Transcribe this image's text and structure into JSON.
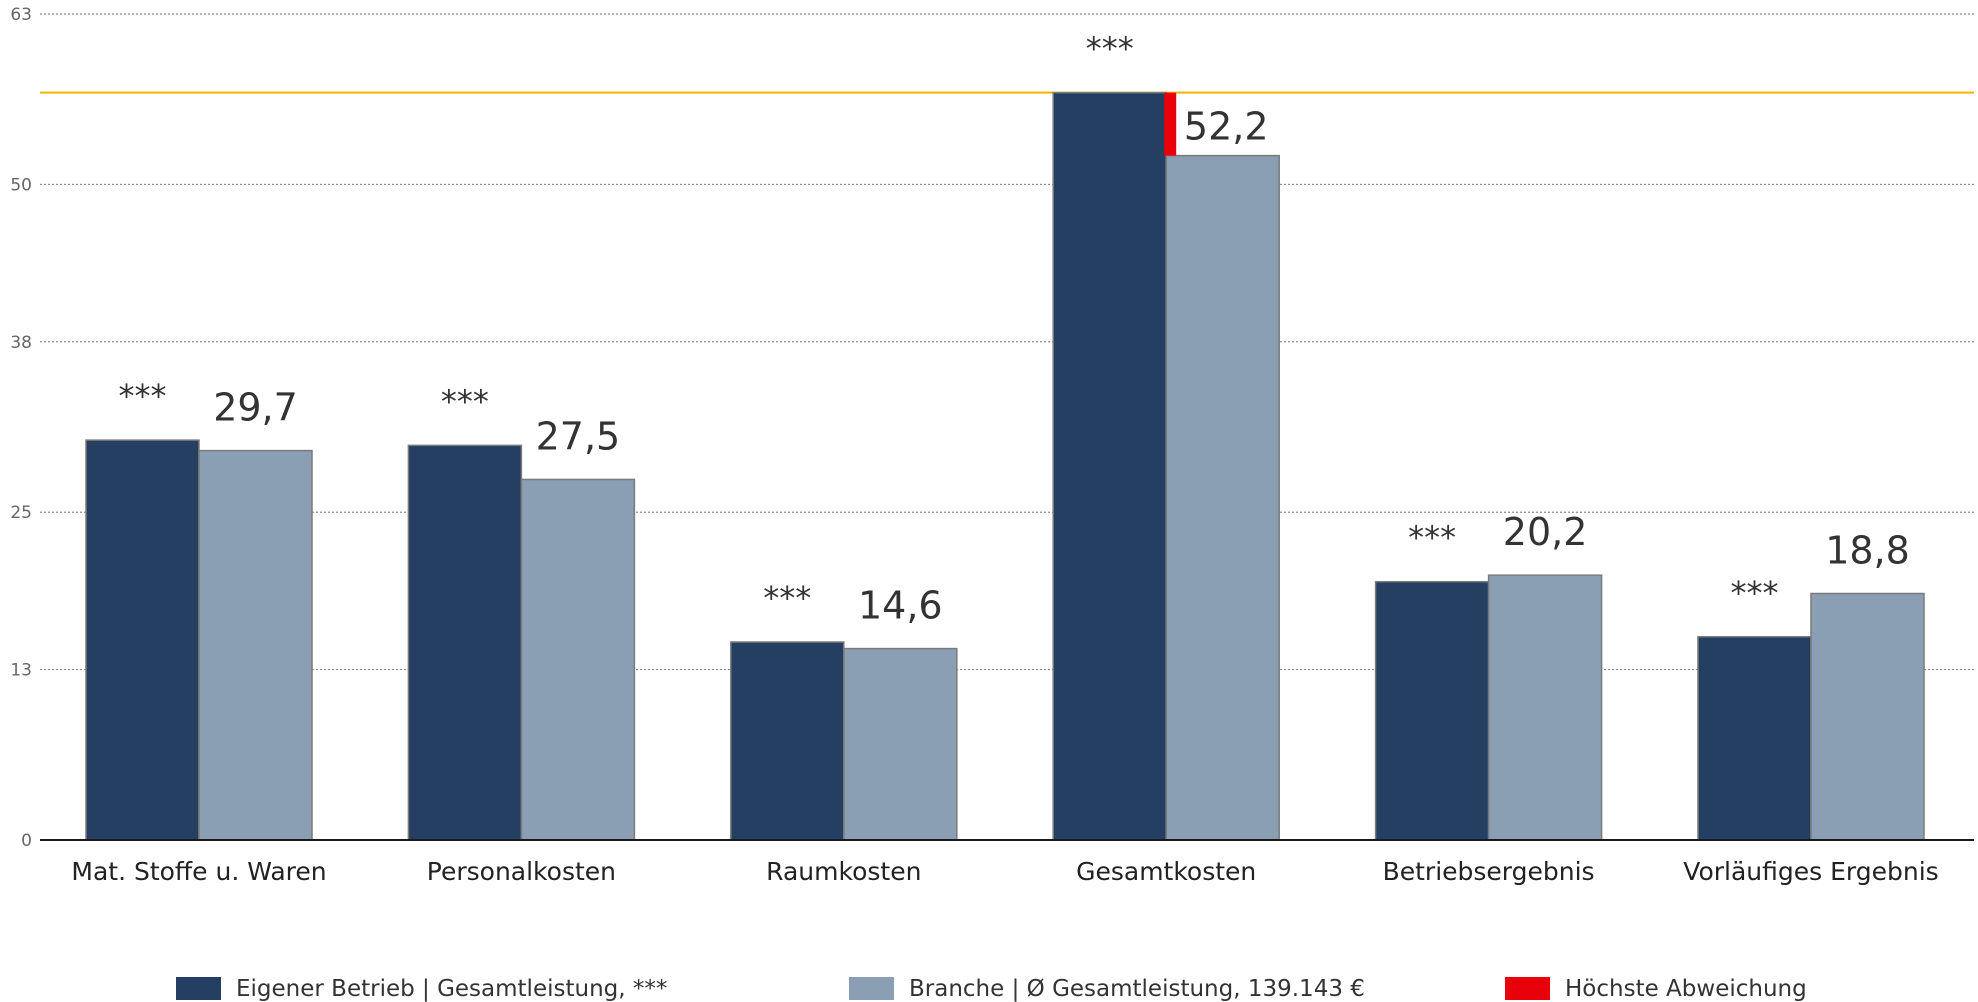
{
  "chart_data": {
    "type": "bar",
    "categories": [
      "Mat. Stoffe u. Waren",
      "Personalkosten",
      "Raumkosten",
      "Gesamtkosten",
      "Betriebsergebnis",
      "Vorläufiges Ergebnis"
    ],
    "series": [
      {
        "name": "Eigener Betrieb | Gesamtleistung, ***",
        "values": [
          30.5,
          30.1,
          15.1,
          57.0,
          19.7,
          15.5
        ],
        "color": "#243f61",
        "labels": [
          "***",
          "***",
          "***",
          "***",
          "***",
          "***"
        ]
      },
      {
        "name": "Branche | Ø Gesamtleistung, 139.143 €",
        "values": [
          29.7,
          27.5,
          14.6,
          52.2,
          20.2,
          18.8
        ],
        "color": "#8a9fb4",
        "labels": [
          "29,7",
          "27,5",
          "14,6",
          "52,2",
          "20,2",
          "18,8"
        ]
      }
    ],
    "highlight": {
      "name": "Höchste Abweichung",
      "color": "#e8000b",
      "category_index": 3
    },
    "reference_line": {
      "value": 57.0,
      "color": "#f0b400"
    },
    "yticks": [
      0,
      13,
      25,
      38,
      50,
      63
    ],
    "ylim": [
      0,
      63
    ],
    "grid": true,
    "legend_position": "bottom"
  }
}
